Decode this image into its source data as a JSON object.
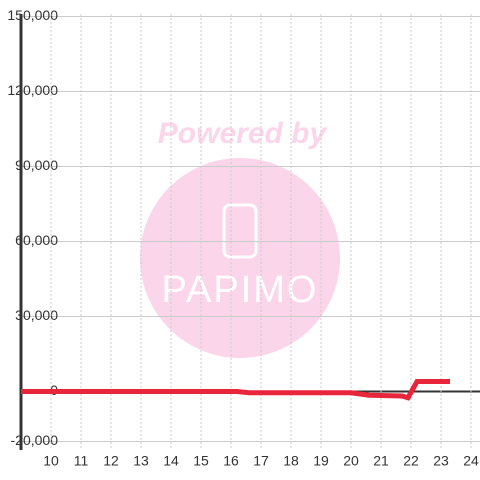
{
  "chart_data": {
    "type": "line",
    "watermark": {
      "top": "Powered by",
      "bottom": "PAPIMO"
    },
    "x": [
      9,
      16.2,
      16.6,
      20,
      20.6,
      21.7,
      21.9,
      22.2,
      23.3
    ],
    "series": [
      {
        "color": "#e8253a",
        "values": [
          0,
          0,
          -500,
          -500,
          -1500,
          -1800,
          -2500,
          4000,
          4000
        ]
      }
    ],
    "xlim": [
      9,
      24.3
    ],
    "xticks": [
      10,
      11,
      12,
      13,
      14,
      15,
      16,
      17,
      18,
      19,
      20,
      21,
      22,
      23,
      24
    ],
    "ylim": [
      -21000,
      151000
    ],
    "yticks": [
      {
        "value": -20000,
        "label": "-20,000"
      },
      0,
      {
        "value": 30000,
        "label": "30,000"
      },
      {
        "value": 60000,
        "label": "60,000"
      },
      {
        "value": 90000,
        "label": "90,000"
      },
      {
        "value": 120000,
        "label": "120,000"
      },
      {
        "value": 150000,
        "label": "150,000"
      }
    ],
    "grid": true
  }
}
